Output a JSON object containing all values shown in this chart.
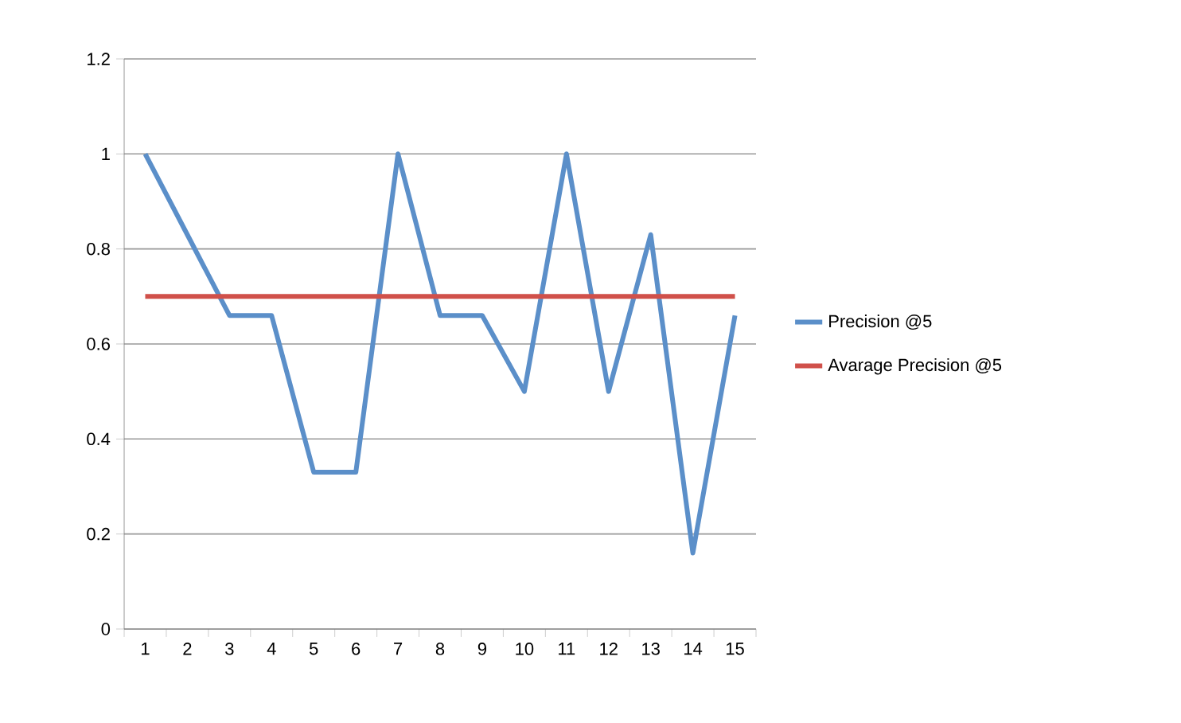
{
  "chart_data": {
    "type": "line",
    "categories": [
      "1",
      "2",
      "3",
      "4",
      "5",
      "6",
      "7",
      "8",
      "9",
      "10",
      "11",
      "12",
      "13",
      "14",
      "15"
    ],
    "series": [
      {
        "name": "Precision   @5",
        "color": "#5b8fc9",
        "values": [
          1,
          0.83,
          0.66,
          0.66,
          0.33,
          0.33,
          1,
          0.66,
          0.66,
          0.5,
          1,
          0.5,
          0.83,
          0.16,
          0.66
        ]
      },
      {
        "name": "Avarage Precision @5",
        "color": "#d0504a",
        "values": [
          0.7,
          0.7,
          0.7,
          0.7,
          0.7,
          0.7,
          0.7,
          0.7,
          0.7,
          0.7,
          0.7,
          0.7,
          0.7,
          0.7,
          0.7
        ]
      }
    ],
    "ylim": [
      0,
      1.2
    ],
    "yticks": [
      0,
      0.2,
      0.4,
      0.6,
      0.8,
      1,
      1.2
    ],
    "grid": "y",
    "legend": "right",
    "marker": "none",
    "line_style": "solid"
  }
}
